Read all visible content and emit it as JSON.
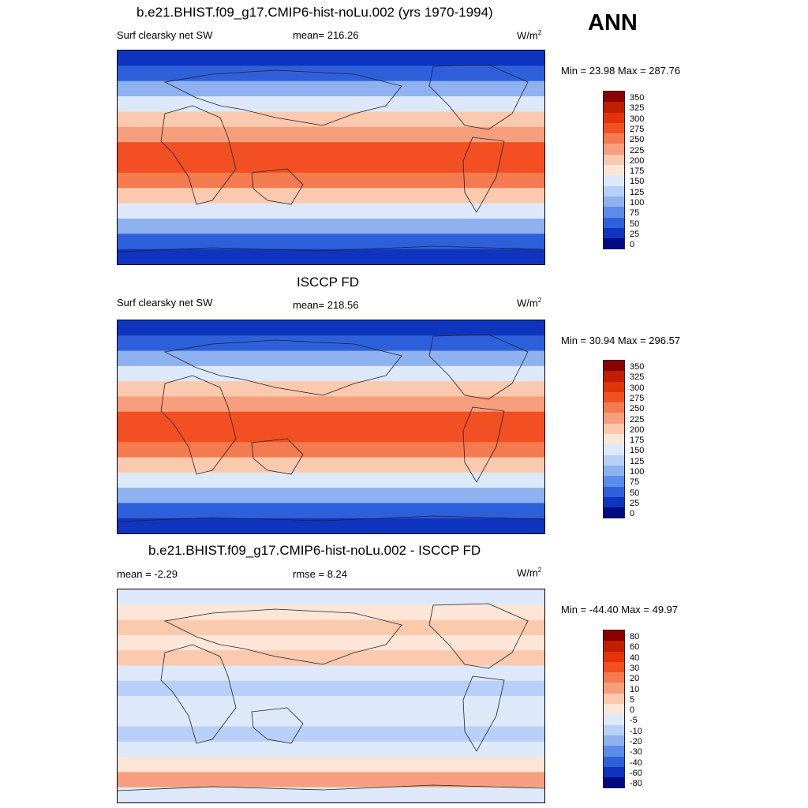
{
  "season": "ANN",
  "panels": [
    {
      "title": "b.e21.BHIST.f09_g17.CMIP6-hist-noLu.002 (yrs 1970-1994)",
      "left_label": "Surf clearsky net SW",
      "center_label": "mean= 216.26",
      "units": "W/m",
      "units_sup": "2",
      "minmax": "Min =  23.98 Max = 287.76"
    },
    {
      "title": "ISCCP FD",
      "left_label": "Surf clearsky net SW",
      "center_label": "mean= 218.56",
      "units": "W/m",
      "units_sup": "2",
      "minmax": "Min =  30.94 Max = 296.57"
    },
    {
      "title": "b.e21.BHIST.f09_g17.CMIP6-hist-noLu.002 - ISCCP FD",
      "left_label": "mean =  -2.29",
      "center_label": "rmse =   8.24",
      "units": "W/m",
      "units_sup": "2",
      "minmax": "Min = -44.40 Max =  49.97"
    }
  ],
  "chart_data": [
    {
      "type": "heatmap",
      "title": "b.e21.BHIST.f09_g17.CMIP6-hist-noLu.002 (yrs 1970-1994)",
      "variable": "Surf clearsky net SW",
      "units": "W/m2",
      "mean": 216.26,
      "min": 23.98,
      "max": 287.76,
      "colorbar_levels": [
        "350",
        "325",
        "300",
        "275",
        "250",
        "225",
        "200",
        "175",
        "150",
        "125",
        "100",
        "75",
        "50",
        "25",
        "0"
      ],
      "colorbar_colors": [
        "#8b0000",
        "#c01e00",
        "#e2330a",
        "#f25022",
        "#f47a4f",
        "#f79f7d",
        "#fbc9ae",
        "#fde6d8",
        "#dde9fb",
        "#b8d0f7",
        "#8eb2f0",
        "#5b8ce8",
        "#2f60dc",
        "#0f35c0",
        "#000a82"
      ]
    },
    {
      "type": "heatmap",
      "title": "ISCCP FD",
      "variable": "Surf clearsky net SW",
      "units": "W/m2",
      "mean": 218.56,
      "min": 30.94,
      "max": 296.57,
      "colorbar_levels": [
        "350",
        "325",
        "300",
        "275",
        "250",
        "225",
        "200",
        "175",
        "150",
        "125",
        "100",
        "75",
        "50",
        "25",
        "0"
      ],
      "colorbar_colors": [
        "#8b0000",
        "#c01e00",
        "#e2330a",
        "#f25022",
        "#f47a4f",
        "#f79f7d",
        "#fbc9ae",
        "#fde6d8",
        "#dde9fb",
        "#b8d0f7",
        "#8eb2f0",
        "#5b8ce8",
        "#2f60dc",
        "#0f35c0",
        "#000a82"
      ]
    },
    {
      "type": "heatmap",
      "title": "b.e21.BHIST.f09_g17.CMIP6-hist-noLu.002 - ISCCP FD",
      "units": "W/m2",
      "mean": -2.29,
      "rmse": 8.24,
      "min": -44.4,
      "max": 49.97,
      "colorbar_levels": [
        "80",
        "60",
        "40",
        "30",
        "20",
        "10",
        "5",
        "0",
        "-5",
        "-10",
        "-20",
        "-30",
        "-40",
        "-60",
        "-80"
      ],
      "colorbar_colors": [
        "#8b0000",
        "#c01e00",
        "#e2330a",
        "#f25022",
        "#f47a4f",
        "#f79f7d",
        "#fbc9ae",
        "#fde6d8",
        "#dde9fb",
        "#b8d0f7",
        "#8eb2f0",
        "#5b8ce8",
        "#2f60dc",
        "#0f35c0",
        "#000a82"
      ]
    }
  ]
}
